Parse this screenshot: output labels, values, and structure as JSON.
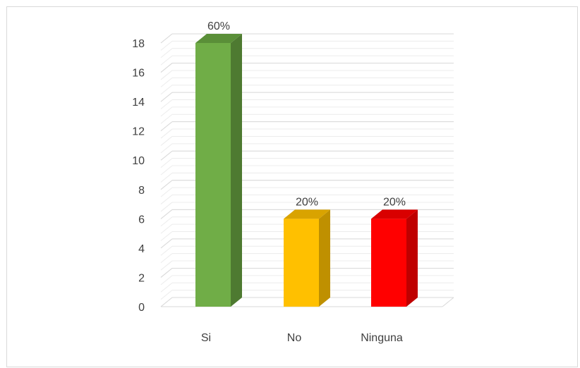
{
  "chart_data": {
    "type": "bar",
    "categories": [
      "Si",
      "No",
      "Ninguna"
    ],
    "values": [
      18,
      6,
      6
    ],
    "data_labels": [
      "60%",
      "20%",
      "20%"
    ],
    "colors": [
      "#70ad47",
      "#ffc000",
      "#ff0000"
    ],
    "side_colors": [
      "#4e7a31",
      "#bf9000",
      "#bf0000"
    ],
    "top_colors": [
      "#5a8f38",
      "#d9a300",
      "#d90000"
    ],
    "ylim": [
      0,
      18
    ],
    "yticks": [
      0,
      2,
      4,
      6,
      8,
      10,
      12,
      14,
      16,
      18
    ],
    "title": "",
    "xlabel": "",
    "ylabel": "",
    "grid": true,
    "legend": "none",
    "style": "3d-column"
  }
}
